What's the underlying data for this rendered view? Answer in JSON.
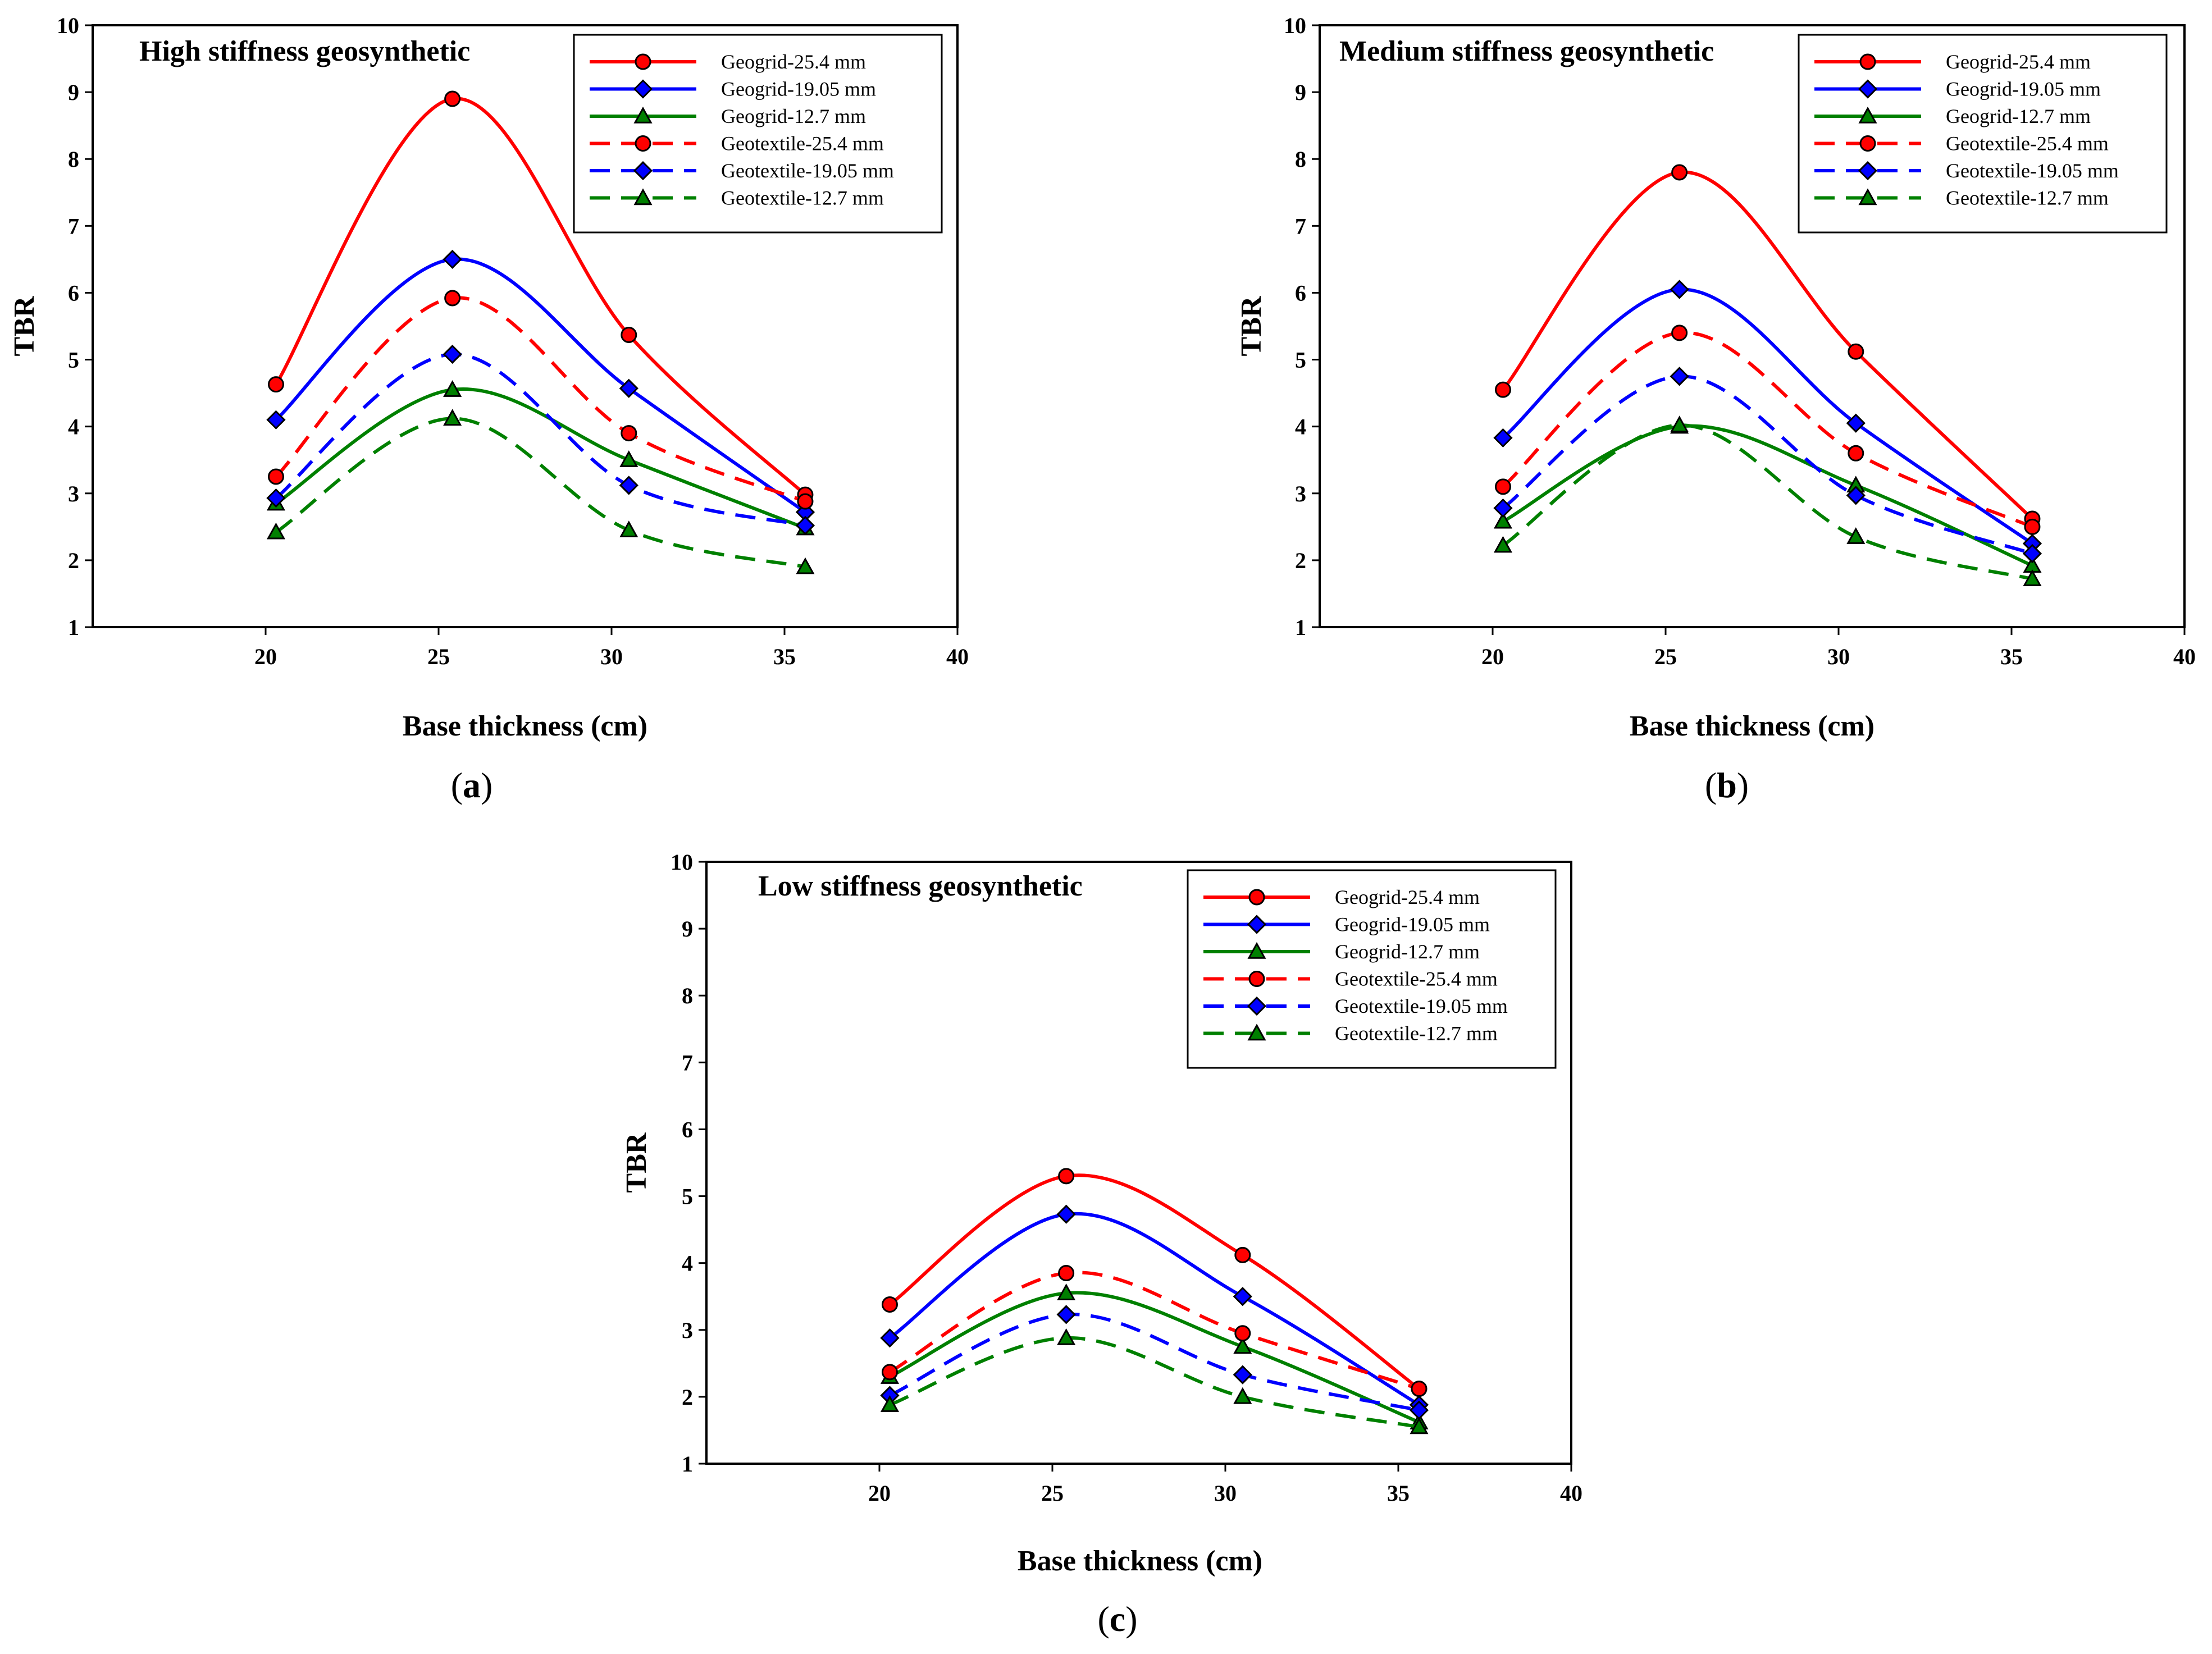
{
  "chart_data": [
    {
      "type": "line",
      "panel": "a",
      "caption": {
        "open": "(",
        "letter": "a",
        "close": ")"
      },
      "title": "High stiffness geosynthetic",
      "xlabel": "Base thickness (cm)",
      "ylabel": "TBR",
      "xlim": [
        15,
        40
      ],
      "ylim": [
        1,
        10
      ],
      "xticks": [
        20,
        25,
        30,
        35,
        40
      ],
      "yticks": [
        1,
        2,
        3,
        4,
        5,
        6,
        7,
        8,
        9,
        10
      ],
      "legend_position": "top-right",
      "series": [
        {
          "name": "Geogrid-25.4 mm",
          "color": "#ff0000",
          "dash": "solid",
          "marker": "circle",
          "x": [
            20.3,
            25.4,
            30.5,
            35.6
          ],
          "y": [
            4.63,
            8.9,
            5.37,
            2.98
          ]
        },
        {
          "name": "Geogrid-19.05 mm",
          "color": "#0000ff",
          "dash": "solid",
          "marker": "diamond",
          "x": [
            20.3,
            25.4,
            30.5,
            35.6
          ],
          "y": [
            4.1,
            6.5,
            4.57,
            2.72
          ]
        },
        {
          "name": "Geogrid-12.7 mm",
          "color": "#008000",
          "dash": "solid",
          "marker": "triangle",
          "x": [
            20.3,
            25.4,
            30.5,
            35.6
          ],
          "y": [
            2.85,
            4.55,
            3.5,
            2.48
          ]
        },
        {
          "name": "Geotextile-25.4 mm",
          "color": "#ff0000",
          "dash": "dashed",
          "marker": "circle",
          "x": [
            20.3,
            25.4,
            30.5,
            35.6
          ],
          "y": [
            3.25,
            5.92,
            3.9,
            2.88
          ]
        },
        {
          "name": "Geotextile-19.05 mm",
          "color": "#0000ff",
          "dash": "dashed",
          "marker": "diamond",
          "x": [
            20.3,
            25.4,
            30.5,
            35.6
          ],
          "y": [
            2.93,
            5.08,
            3.12,
            2.52
          ]
        },
        {
          "name": "Geotextile-12.7 mm",
          "color": "#008000",
          "dash": "dashed",
          "marker": "triangle",
          "x": [
            20.3,
            25.4,
            30.5,
            35.6
          ],
          "y": [
            2.42,
            4.12,
            2.45,
            1.9
          ]
        }
      ]
    },
    {
      "type": "line",
      "panel": "b",
      "caption": {
        "open": "(",
        "letter": "b",
        "close": ")"
      },
      "title": "Medium stiffness geosynthetic",
      "xlabel": "Base thickness (cm)",
      "ylabel": "TBR",
      "xlim": [
        15,
        40
      ],
      "ylim": [
        1,
        10
      ],
      "xticks": [
        20,
        25,
        30,
        35,
        40
      ],
      "yticks": [
        1,
        2,
        3,
        4,
        5,
        6,
        7,
        8,
        9,
        10
      ],
      "legend_position": "top-right",
      "series": [
        {
          "name": "Geogrid-25.4 mm",
          "color": "#ff0000",
          "dash": "solid",
          "marker": "circle",
          "x": [
            20.3,
            25.4,
            30.5,
            35.6
          ],
          "y": [
            4.55,
            7.8,
            5.12,
            2.62
          ]
        },
        {
          "name": "Geogrid-19.05 mm",
          "color": "#0000ff",
          "dash": "solid",
          "marker": "diamond",
          "x": [
            20.3,
            25.4,
            30.5,
            35.6
          ],
          "y": [
            3.83,
            6.05,
            4.05,
            2.25
          ]
        },
        {
          "name": "Geogrid-12.7 mm",
          "color": "#008000",
          "dash": "solid",
          "marker": "triangle",
          "x": [
            20.3,
            25.4,
            30.5,
            35.6
          ],
          "y": [
            2.58,
            4.0,
            3.12,
            1.92
          ]
        },
        {
          "name": "Geotextile-25.4 mm",
          "color": "#ff0000",
          "dash": "dashed",
          "marker": "circle",
          "x": [
            20.3,
            25.4,
            30.5,
            35.6
          ],
          "y": [
            3.1,
            5.4,
            3.6,
            2.5
          ]
        },
        {
          "name": "Geotextile-19.05 mm",
          "color": "#0000ff",
          "dash": "dashed",
          "marker": "diamond",
          "x": [
            20.3,
            25.4,
            30.5,
            35.6
          ],
          "y": [
            2.78,
            4.75,
            2.97,
            2.1
          ]
        },
        {
          "name": "Geotextile-12.7 mm",
          "color": "#008000",
          "dash": "dashed",
          "marker": "triangle",
          "x": [
            20.3,
            25.4,
            30.5,
            35.6
          ],
          "y": [
            2.22,
            4.02,
            2.35,
            1.72
          ]
        }
      ]
    },
    {
      "type": "line",
      "panel": "c",
      "caption": {
        "open": "(",
        "letter": "c",
        "close": ")"
      },
      "title": "Low stiffness geosynthetic",
      "xlabel": "Base thickness (cm)",
      "ylabel": "TBR",
      "xlim": [
        15,
        40
      ],
      "ylim": [
        1,
        10
      ],
      "xticks": [
        20,
        25,
        30,
        35,
        40
      ],
      "yticks": [
        1,
        2,
        3,
        4,
        5,
        6,
        7,
        8,
        9,
        10
      ],
      "legend_position": "top-right",
      "series": [
        {
          "name": "Geogrid-25.4 mm",
          "color": "#ff0000",
          "dash": "solid",
          "marker": "circle",
          "x": [
            20.3,
            25.4,
            30.5,
            35.6
          ],
          "y": [
            3.38,
            5.3,
            4.12,
            2.12
          ]
        },
        {
          "name": "Geogrid-19.05 mm",
          "color": "#0000ff",
          "dash": "solid",
          "marker": "diamond",
          "x": [
            20.3,
            25.4,
            30.5,
            35.6
          ],
          "y": [
            2.88,
            4.73,
            3.5,
            1.88
          ]
        },
        {
          "name": "Geogrid-12.7 mm",
          "color": "#008000",
          "dash": "solid",
          "marker": "triangle",
          "x": [
            20.3,
            25.4,
            30.5,
            35.6
          ],
          "y": [
            2.3,
            3.55,
            2.75,
            1.62
          ]
        },
        {
          "name": "Geotextile-25.4 mm",
          "color": "#ff0000",
          "dash": "dashed",
          "marker": "circle",
          "x": [
            20.3,
            25.4,
            30.5,
            35.6
          ],
          "y": [
            2.37,
            3.85,
            2.95,
            2.12
          ]
        },
        {
          "name": "Geotextile-19.05 mm",
          "color": "#0000ff",
          "dash": "dashed",
          "marker": "diamond",
          "x": [
            20.3,
            25.4,
            30.5,
            35.6
          ],
          "y": [
            2.02,
            3.23,
            2.33,
            1.8
          ]
        },
        {
          "name": "Geotextile-12.7 mm",
          "color": "#008000",
          "dash": "dashed",
          "marker": "triangle",
          "x": [
            20.3,
            25.4,
            30.5,
            35.6
          ],
          "y": [
            1.88,
            2.88,
            2.0,
            1.55
          ]
        }
      ]
    }
  ]
}
